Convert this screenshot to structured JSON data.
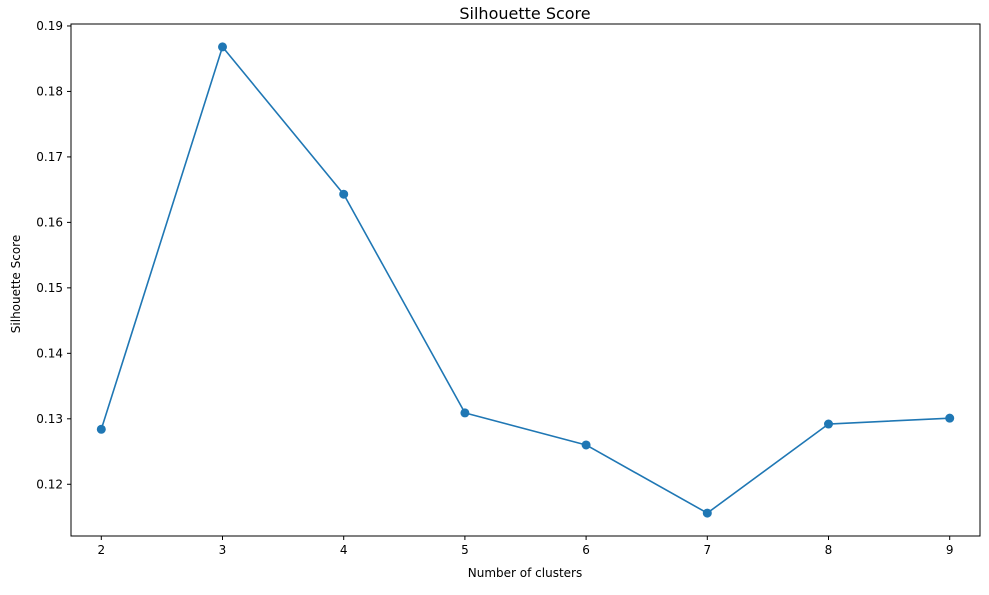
{
  "chart_data": {
    "type": "line",
    "title": "Silhouette Score",
    "xlabel": "Number of clusters",
    "ylabel": "Silhouette Score",
    "x": [
      2,
      3,
      4,
      5,
      6,
      7,
      8,
      9
    ],
    "series": [
      {
        "name": "Silhouette Score",
        "values": [
          0.1284,
          0.1868,
          0.1643,
          0.1309,
          0.126,
          0.1156,
          0.1292,
          0.1301
        ],
        "marker": "circle"
      }
    ],
    "xlim": [
      1.75,
      9.25
    ],
    "ylim": [
      0.1121,
      0.1903
    ],
    "xticks": [
      2,
      3,
      4,
      5,
      6,
      7,
      8,
      9
    ],
    "xtick_labels": [
      "2",
      "3",
      "4",
      "5",
      "6",
      "7",
      "8",
      "9"
    ],
    "yticks": [
      0.12,
      0.13,
      0.14,
      0.15,
      0.16,
      0.17,
      0.18,
      0.19
    ],
    "ytick_labels": [
      "0.12",
      "0.13",
      "0.14",
      "0.15",
      "0.16",
      "0.17",
      "0.18",
      "0.19"
    ],
    "grid": false,
    "legend": "none",
    "colors": {
      "series": "#1f77b4",
      "axes": "#000000",
      "background": "#ffffff"
    }
  }
}
